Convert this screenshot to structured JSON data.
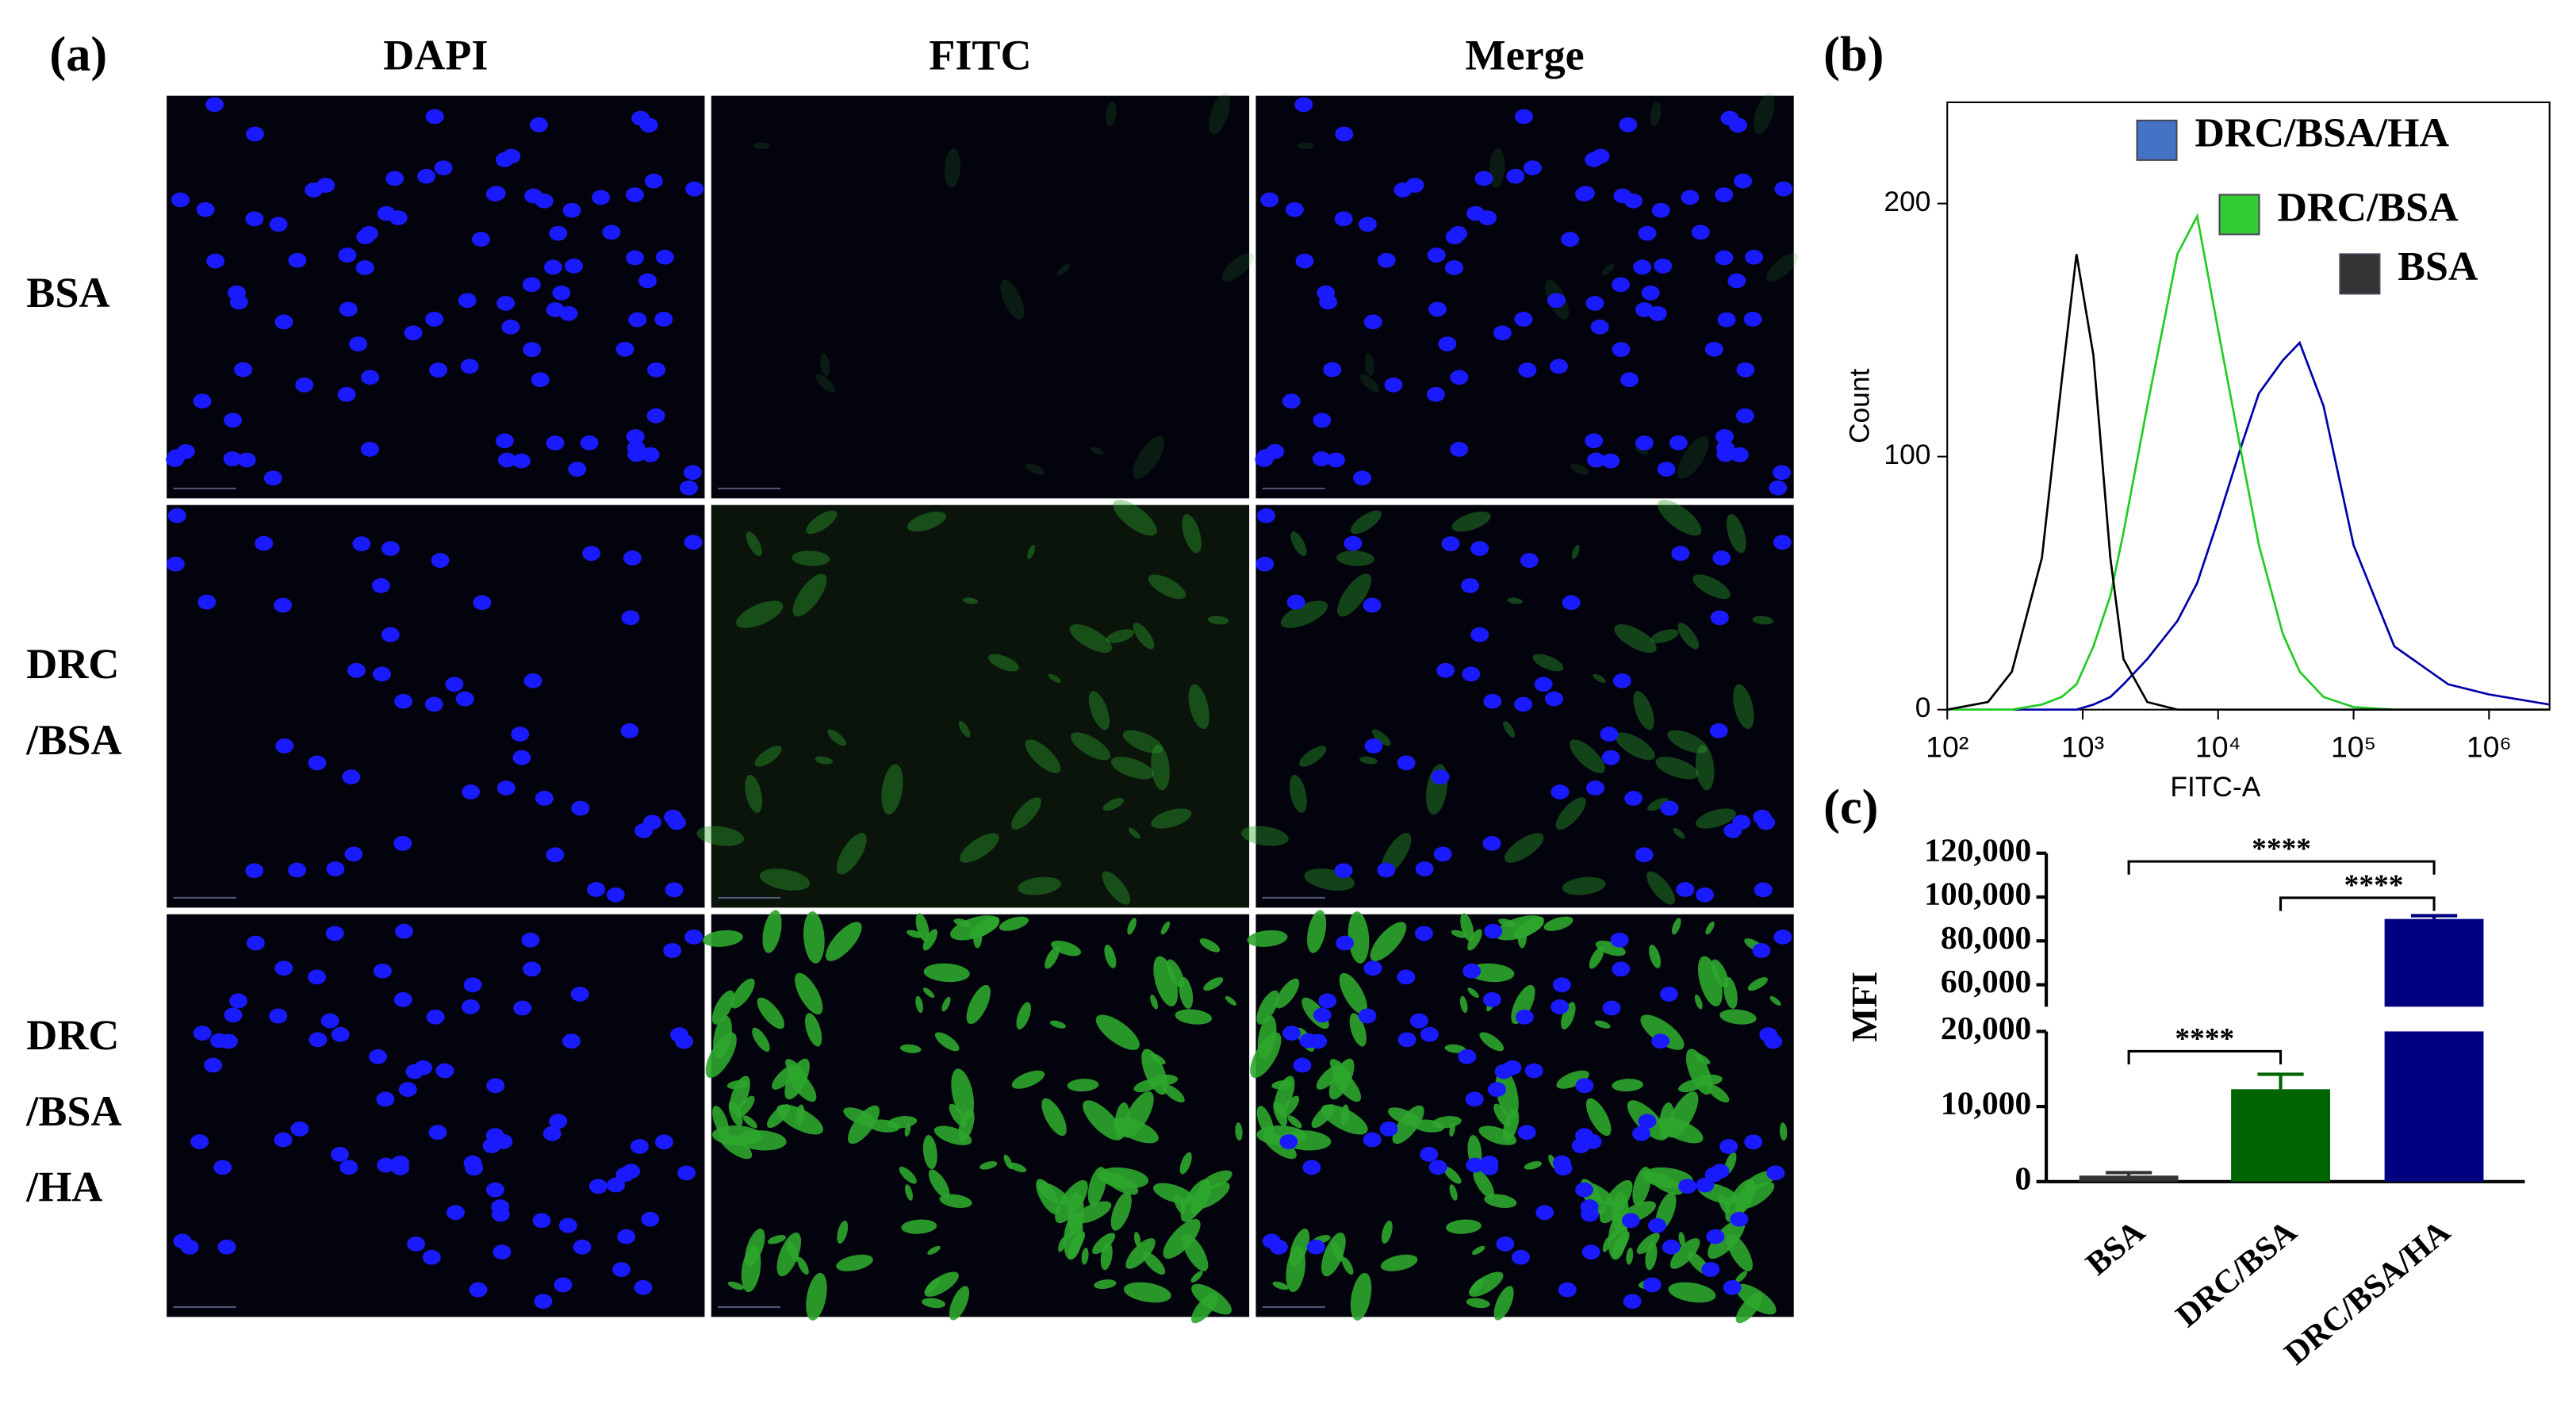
{
  "panel_a": {
    "label": "(a)",
    "columns": [
      "DAPI",
      "FITC",
      "Merge"
    ],
    "rows": [
      [
        "BSA"
      ],
      [
        "DRC",
        "/BSA"
      ],
      [
        "DRC",
        "/BSA",
        "/HA"
      ]
    ]
  },
  "chart_data": [
    {
      "type": "line",
      "label": "(b)",
      "xlabel": "FITC-A",
      "ylabel": "Count",
      "log_x": true,
      "x": [
        100,
        200,
        300,
        500,
        700,
        900,
        1200,
        1600,
        2000,
        3000,
        5000,
        7000,
        10000,
        15000,
        20000,
        30000,
        40000,
        60000,
        100000,
        200000,
        500000,
        1000000,
        2800000
      ],
      "xlim": [
        100,
        2800000
      ],
      "xticks": [
        {
          "value": 100,
          "label": "10²"
        },
        {
          "value": 1000,
          "label": "10³"
        },
        {
          "value": 10000,
          "label": "10⁴"
        },
        {
          "value": 100000,
          "label": "10⁵"
        },
        {
          "value": 1000000,
          "label": "10⁶"
        }
      ],
      "ylim": [
        0,
        240
      ],
      "yticks": [
        0,
        100,
        200
      ],
      "series": [
        {
          "name": "DRC/BSA/HA",
          "color": "#0000aa",
          "legend_color": "#4472c4",
          "values": [
            0,
            0,
            0,
            0,
            0,
            0,
            2,
            5,
            10,
            20,
            35,
            50,
            75,
            105,
            125,
            138,
            145,
            120,
            65,
            25,
            10,
            6,
            2
          ]
        },
        {
          "name": "DRC/BSA",
          "color": "#22cc22",
          "legend_color": "#33cc33",
          "values": [
            0,
            0,
            0,
            2,
            5,
            10,
            25,
            45,
            70,
            120,
            180,
            195,
            150,
            100,
            65,
            30,
            15,
            5,
            1,
            0,
            0,
            0,
            0
          ]
        },
        {
          "name": "BSA",
          "color": "#000000",
          "legend_color": "#333333",
          "values": [
            0,
            3,
            15,
            60,
            130,
            180,
            140,
            60,
            20,
            3,
            0,
            0,
            0,
            0,
            0,
            0,
            0,
            0,
            0,
            0,
            0,
            0,
            0
          ]
        }
      ]
    },
    {
      "type": "bar",
      "label": "(c)",
      "ylabel": "MFI",
      "categories": [
        "BSA",
        "DRC/BSA",
        "DRC/BSA/HA"
      ],
      "values": [
        800,
        12300,
        90000
      ],
      "errors": [
        400,
        2000,
        1500
      ],
      "colors": [
        "#333333",
        "#006400",
        "#000080"
      ],
      "ylim": [
        0,
        120000
      ],
      "axis_break": [
        20000,
        50000
      ],
      "yticks": [
        0,
        {
          "value": 10000,
          "label": "10,000"
        },
        {
          "value": 20000,
          "label": "20,000"
        },
        {
          "value": 60000,
          "label": "60,000"
        },
        {
          "value": 80000,
          "label": "80,000"
        },
        {
          "value": 100000,
          "label": "100,000"
        },
        {
          "value": 120000,
          "label": "120,000"
        }
      ],
      "annotations": [
        "****",
        "****",
        "****"
      ]
    }
  ]
}
